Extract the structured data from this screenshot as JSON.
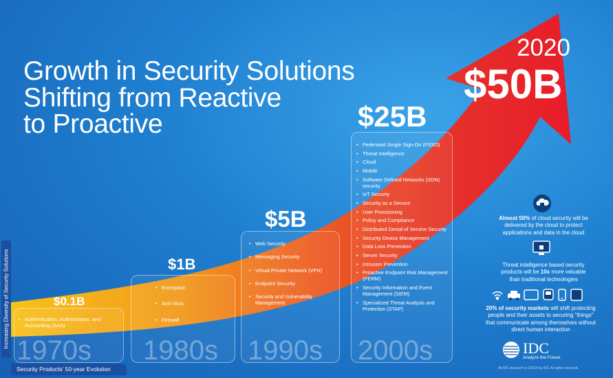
{
  "title": {
    "line1": "Growth in Security Solutions",
    "line2": "Shifting from Reactive",
    "line3": "to Proactive"
  },
  "projection": {
    "year": "2020",
    "amount": "$50B"
  },
  "eras": [
    {
      "decade": "1970s",
      "amount": "$0.1B",
      "items": [
        "Authentication, Authorization, and Accounting (AAA)"
      ]
    },
    {
      "decade": "1980s",
      "amount": "$1B",
      "items": [
        "Encryption",
        "Anti-Virus",
        "Firewall"
      ]
    },
    {
      "decade": "1990s",
      "amount": "$5B",
      "items": [
        "Web Security",
        "Messaging Security",
        "Virtual Private Network (VPN)",
        "Endpoint Security",
        "Security and Vulnerability Management"
      ]
    },
    {
      "decade": "2000s",
      "amount": "$25B",
      "items": [
        "Federated Single Sign-On (FSSO)",
        "Threat Intelligence",
        "Cloud",
        "Mobile",
        "Software Defined Networks (SDN) security",
        "IoT Security",
        "Security as a Service",
        "User Provisioning",
        "Policy and Compliance",
        "Distributed Denial of Service Security",
        "Security Device Management",
        "Data Loss Prevention",
        "Server Security",
        "Intrusion Prevention",
        "Proactive Endpoint Risk Management (PERM)",
        "Security Information and Event Management (SIEM)",
        "Specialized Threat Analysis and Protection (STAP)"
      ]
    }
  ],
  "facts": {
    "cloud_bold": "Almost 50%",
    "cloud_rest": "of cloud security will be delivered by the cloud to protect applications and data in the cloud",
    "threat_text_a": "Threat intelligence based security products will be",
    "threat_bold": "10x",
    "threat_text_b": "more valuable than traditional technologies",
    "iot_bold": "20% of security markets",
    "iot_rest": "will shift protecting people and their assets to securing \"things\" that communicate among themselves without direct human interaction"
  },
  "axis_label": "Increasing Diversity of Security Solutions",
  "footer": "Security Products' 50-year Evolution",
  "brand": {
    "name": "IDC",
    "tagline": "Analyze the Future"
  },
  "copyright": "All IDC research is ©2014 by IDC All rights reserved.",
  "colors": {
    "background": "#1f7fd0",
    "arrow_start": "#f6b318",
    "arrow_mid": "#ec5b24",
    "arrow_end": "#e81c2a",
    "footer_bar": "#1a4fa0"
  },
  "icons": [
    "cloud-lock-icon",
    "monitor-lock-icon",
    "wifi-icon",
    "car-icon",
    "tablet-icon",
    "train-icon",
    "phone-icon"
  ]
}
